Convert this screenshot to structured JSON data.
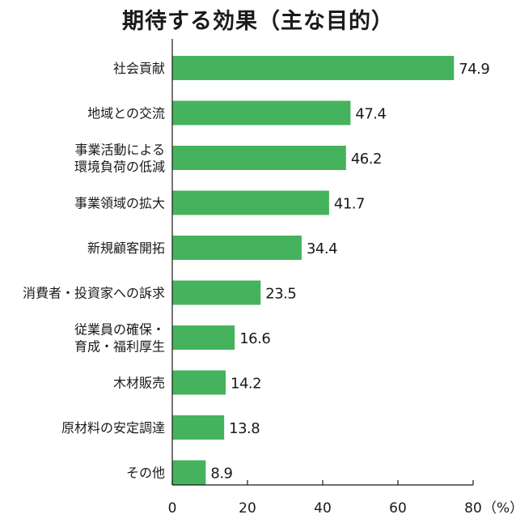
{
  "chart_data": {
    "type": "bar",
    "orientation": "horizontal",
    "title": "期待する効果（主な目的）",
    "categories": [
      [
        "社会貢献"
      ],
      [
        "地域との交流"
      ],
      [
        "事業活動による",
        "環境負荷の低減"
      ],
      [
        "事業領域の拡大"
      ],
      [
        "新規顧客開拓"
      ],
      [
        "消費者・投資家への訴求"
      ],
      [
        "従業員の確保・",
        "育成・福利厚生"
      ],
      [
        "木材販売"
      ],
      [
        "原材料の安定調達"
      ],
      [
        "その他"
      ]
    ],
    "values": [
      74.9,
      47.4,
      46.2,
      41.7,
      34.4,
      23.5,
      16.6,
      14.2,
      13.8,
      8.9
    ],
    "value_labels": [
      "74.9",
      "47.4",
      "46.2",
      "41.7",
      "34.4",
      "23.5",
      "16.6",
      "14.2",
      "13.8",
      "8.9"
    ],
    "xlim": [
      0,
      80
    ],
    "xticks": [
      0,
      20,
      40,
      60,
      80
    ],
    "xtick_labels": [
      "0",
      "20",
      "40",
      "60",
      "80"
    ],
    "unit": "（%）",
    "grid": false,
    "bar_color": "#45b35d",
    "axis_color": "#1a1a1a"
  }
}
